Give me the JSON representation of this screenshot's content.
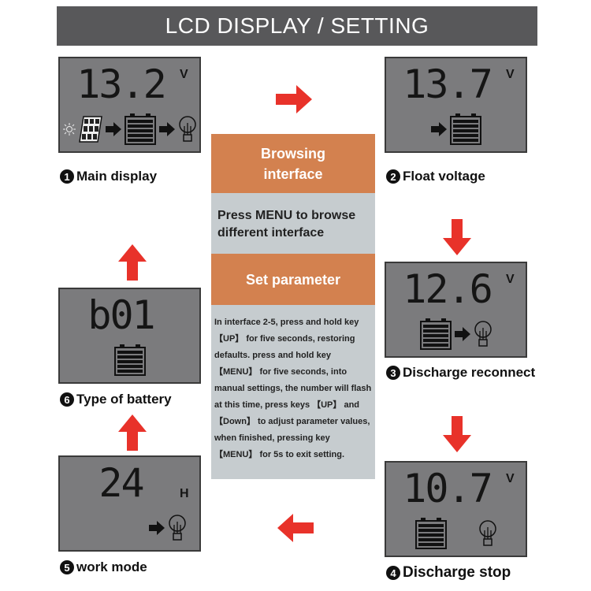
{
  "title": "LCD DISPLAY / SETTING",
  "center": {
    "browsing": "Browsing interface",
    "browse_text": "Press MENU to browse different interface",
    "set_parameter": "Set parameter",
    "instructions": "In interface 2-5, press and hold key 【UP】 for five seconds, restoring defaults. press and hold key 【MENU】 for five seconds, into manual settings, the number will flash at this time, press keys 【UP】 and 【Down】 to adjust parameter values, when finished, pressing key 【MENU】 for 5s to exit setting."
  },
  "panels": [
    {
      "num": "1",
      "label": "Main display",
      "value": "13.2",
      "unit": "V",
      "icons": [
        "sun-icon",
        "solar-panel-icon",
        "arrow-icon",
        "battery-icon",
        "arrow-icon",
        "bulb-icon"
      ]
    },
    {
      "num": "2",
      "label": "Float voltage",
      "value": "13.7",
      "unit": "V",
      "icons": [
        "arrow-icon",
        "battery-icon"
      ]
    },
    {
      "num": "3",
      "label": "Discharge reconnect",
      "value": "12.6",
      "unit": "V",
      "icons": [
        "battery-icon",
        "arrow-icon",
        "bulb-icon"
      ]
    },
    {
      "num": "4",
      "label": "Discharge stop",
      "value": "10.7",
      "unit": "V",
      "icons": [
        "battery-icon",
        "bulb-icon"
      ]
    },
    {
      "num": "5",
      "label": "work mode",
      "value": "24",
      "unit": "H",
      "icons": [
        "arrow-icon",
        "bulb-icon"
      ]
    },
    {
      "num": "6",
      "label": "Type of battery",
      "value": "b01",
      "unit": "",
      "icons": [
        "battery-icon"
      ]
    }
  ],
  "colors": {
    "arrow": "#e8322a",
    "orange": "#d3814f",
    "lcd": "#7b7b7d",
    "title_bar": "#58585a"
  }
}
